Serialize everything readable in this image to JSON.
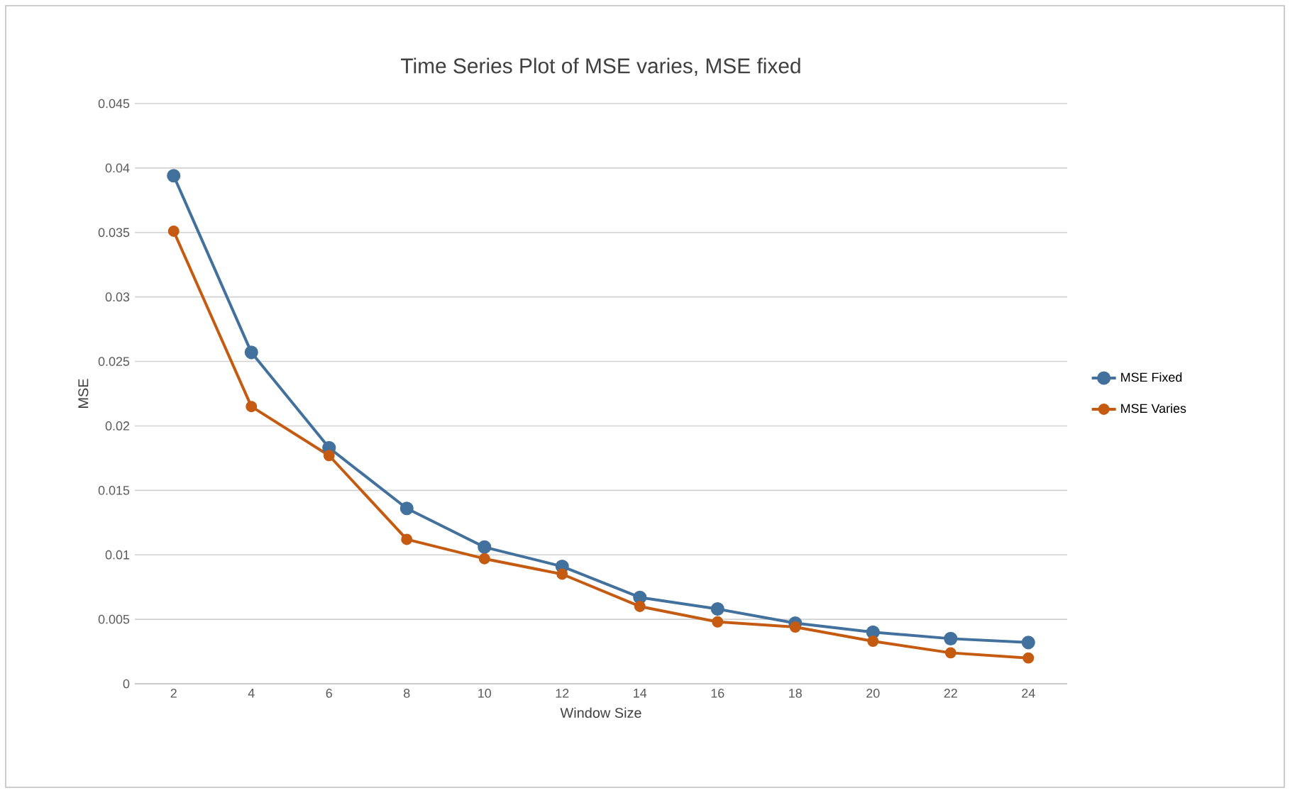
{
  "chart_data": {
    "type": "line",
    "title": "Time Series Plot of MSE varies, MSE fixed",
    "xlabel": "Window Size",
    "ylabel": "MSE",
    "categories": [
      "2",
      "4",
      "6",
      "8",
      "10",
      "12",
      "14",
      "16",
      "18",
      "20",
      "22",
      "24"
    ],
    "series": [
      {
        "name": "MSE Fixed",
        "color": "#41719c",
        "values": [
          0.0394,
          0.0257,
          0.0183,
          0.0136,
          0.0106,
          0.0091,
          0.0067,
          0.0058,
          0.0047,
          0.004,
          0.0035,
          0.0032
        ]
      },
      {
        "name": "MSE Varies",
        "color": "#c55a11",
        "values": [
          0.0351,
          0.0215,
          0.0177,
          0.0112,
          0.0097,
          0.0085,
          0.006,
          0.0048,
          0.0044,
          0.0033,
          0.0024,
          0.002
        ]
      }
    ],
    "ylim": [
      0,
      0.045
    ],
    "yticks": [
      0,
      0.005,
      0.01,
      0.015,
      0.02,
      0.025,
      0.03,
      0.035,
      0.04,
      0.045
    ],
    "grid": "y",
    "legend": "right",
    "marker": "circle",
    "line_style": "solid"
  }
}
